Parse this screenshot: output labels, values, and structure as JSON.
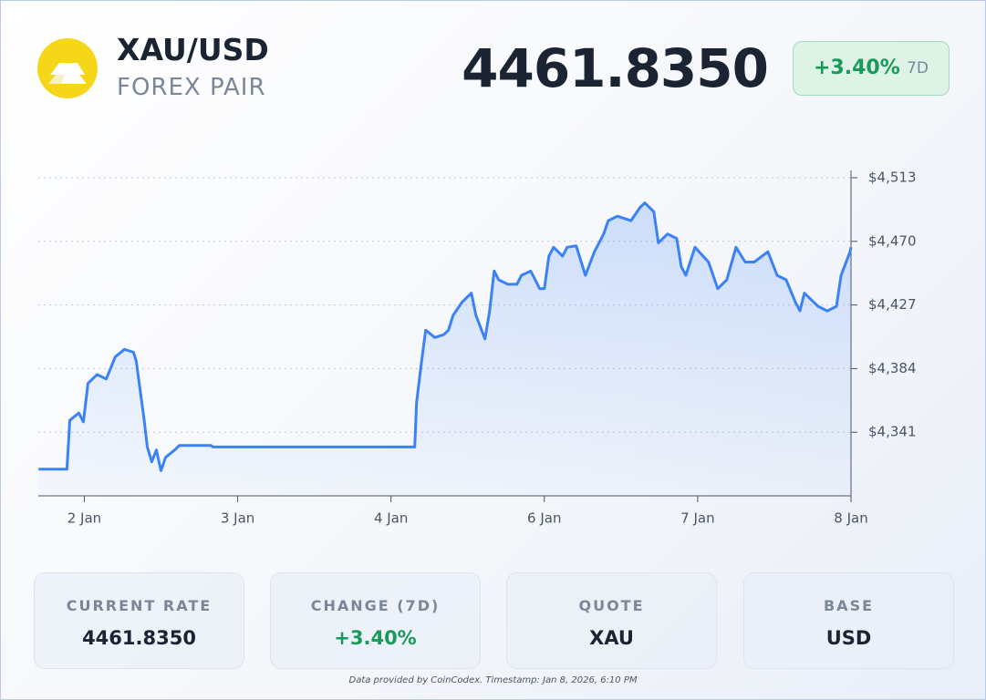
{
  "header": {
    "symbol": "XAU/USD",
    "subtitle": "FOREX PAIR",
    "price": "4461.8350",
    "change": "+3.40%",
    "period": "7D"
  },
  "chart_data": {
    "type": "line",
    "color": "#3b82f6",
    "grid": true,
    "x": [
      -0.298,
      -0.113,
      -0.095,
      -0.036,
      -0.006,
      0.024,
      0.083,
      0.143,
      0.202,
      0.262,
      0.321,
      0.339,
      0.363,
      0.387,
      0.411,
      0.44,
      0.47,
      0.5,
      0.53,
      0.589,
      0.619,
      0.827,
      0.839,
      2.155,
      2.167,
      2.196,
      2.226,
      2.286,
      2.345,
      2.375,
      2.405,
      2.464,
      2.524,
      2.554,
      2.613,
      2.643,
      2.673,
      2.702,
      2.762,
      2.821,
      2.851,
      2.911,
      2.97,
      3.0,
      3.03,
      3.06,
      3.119,
      3.149,
      3.208,
      3.268,
      3.327,
      3.387,
      3.417,
      3.476,
      3.565,
      3.625,
      3.655,
      3.714,
      3.744,
      3.804,
      3.863,
      3.893,
      3.923,
      3.982,
      4.071,
      4.131,
      4.19,
      4.25,
      4.31,
      4.369,
      4.458,
      4.518,
      4.577,
      4.637,
      4.667,
      4.696,
      4.786,
      4.845,
      4.905,
      4.935,
      4.994,
      5.0
    ],
    "values": [
      4316,
      4316,
      4349,
      4354,
      4348,
      4374,
      4380,
      4377,
      4392,
      4397,
      4395,
      4389,
      4370,
      4352,
      4331,
      4321,
      4329,
      4315,
      4324,
      4329,
      4332,
      4332,
      4331,
      4331,
      4361,
      4386,
      4410,
      4405,
      4407,
      4410,
      4420,
      4429,
      4435,
      4420,
      4404,
      4423,
      4450,
      4444,
      4441,
      4441,
      4447,
      4450,
      4438,
      4438,
      4460,
      4466,
      4460,
      4466,
      4467,
      4447,
      4463,
      4475,
      4484,
      4487,
      4484,
      4493,
      4496,
      4490,
      4469,
      4475,
      4472,
      4453,
      4447,
      4466,
      4456,
      4438,
      4444,
      4466,
      4456,
      4456,
      4463,
      4447,
      4444,
      4429,
      4423,
      4435,
      4426,
      4423,
      4426,
      4447,
      4463,
      4466
    ],
    "xlim": [
      -0.3,
      5.0
    ],
    "xticks": [
      {
        "value": 0,
        "label": "2 Jan"
      },
      {
        "value": 1,
        "label": "3 Jan"
      },
      {
        "value": 2,
        "label": "4 Jan"
      },
      {
        "value": 3,
        "label": "6 Jan"
      },
      {
        "value": 4,
        "label": "7 Jan"
      },
      {
        "value": 5,
        "label": "8 Jan"
      }
    ],
    "ylim": [
      4298,
      4513
    ],
    "yticks": [
      {
        "value": 4341,
        "label": "$4,341"
      },
      {
        "value": 4384,
        "label": "$4,384"
      },
      {
        "value": 4427,
        "label": "$4,427"
      },
      {
        "value": 4470,
        "label": "$4,470"
      },
      {
        "value": 4513,
        "label": "$4,513"
      }
    ]
  },
  "stats": [
    {
      "label": "CURRENT RATE",
      "value": "4461.8350"
    },
    {
      "label": "CHANGE (7D)",
      "value": "+3.40%"
    },
    {
      "label": "QUOTE",
      "value": "XAU"
    },
    {
      "label": "BASE",
      "value": "USD"
    }
  ],
  "footer": "Data provided by CoinCodex. Timestamp: Jan 8, 2026, 6:10 PM"
}
